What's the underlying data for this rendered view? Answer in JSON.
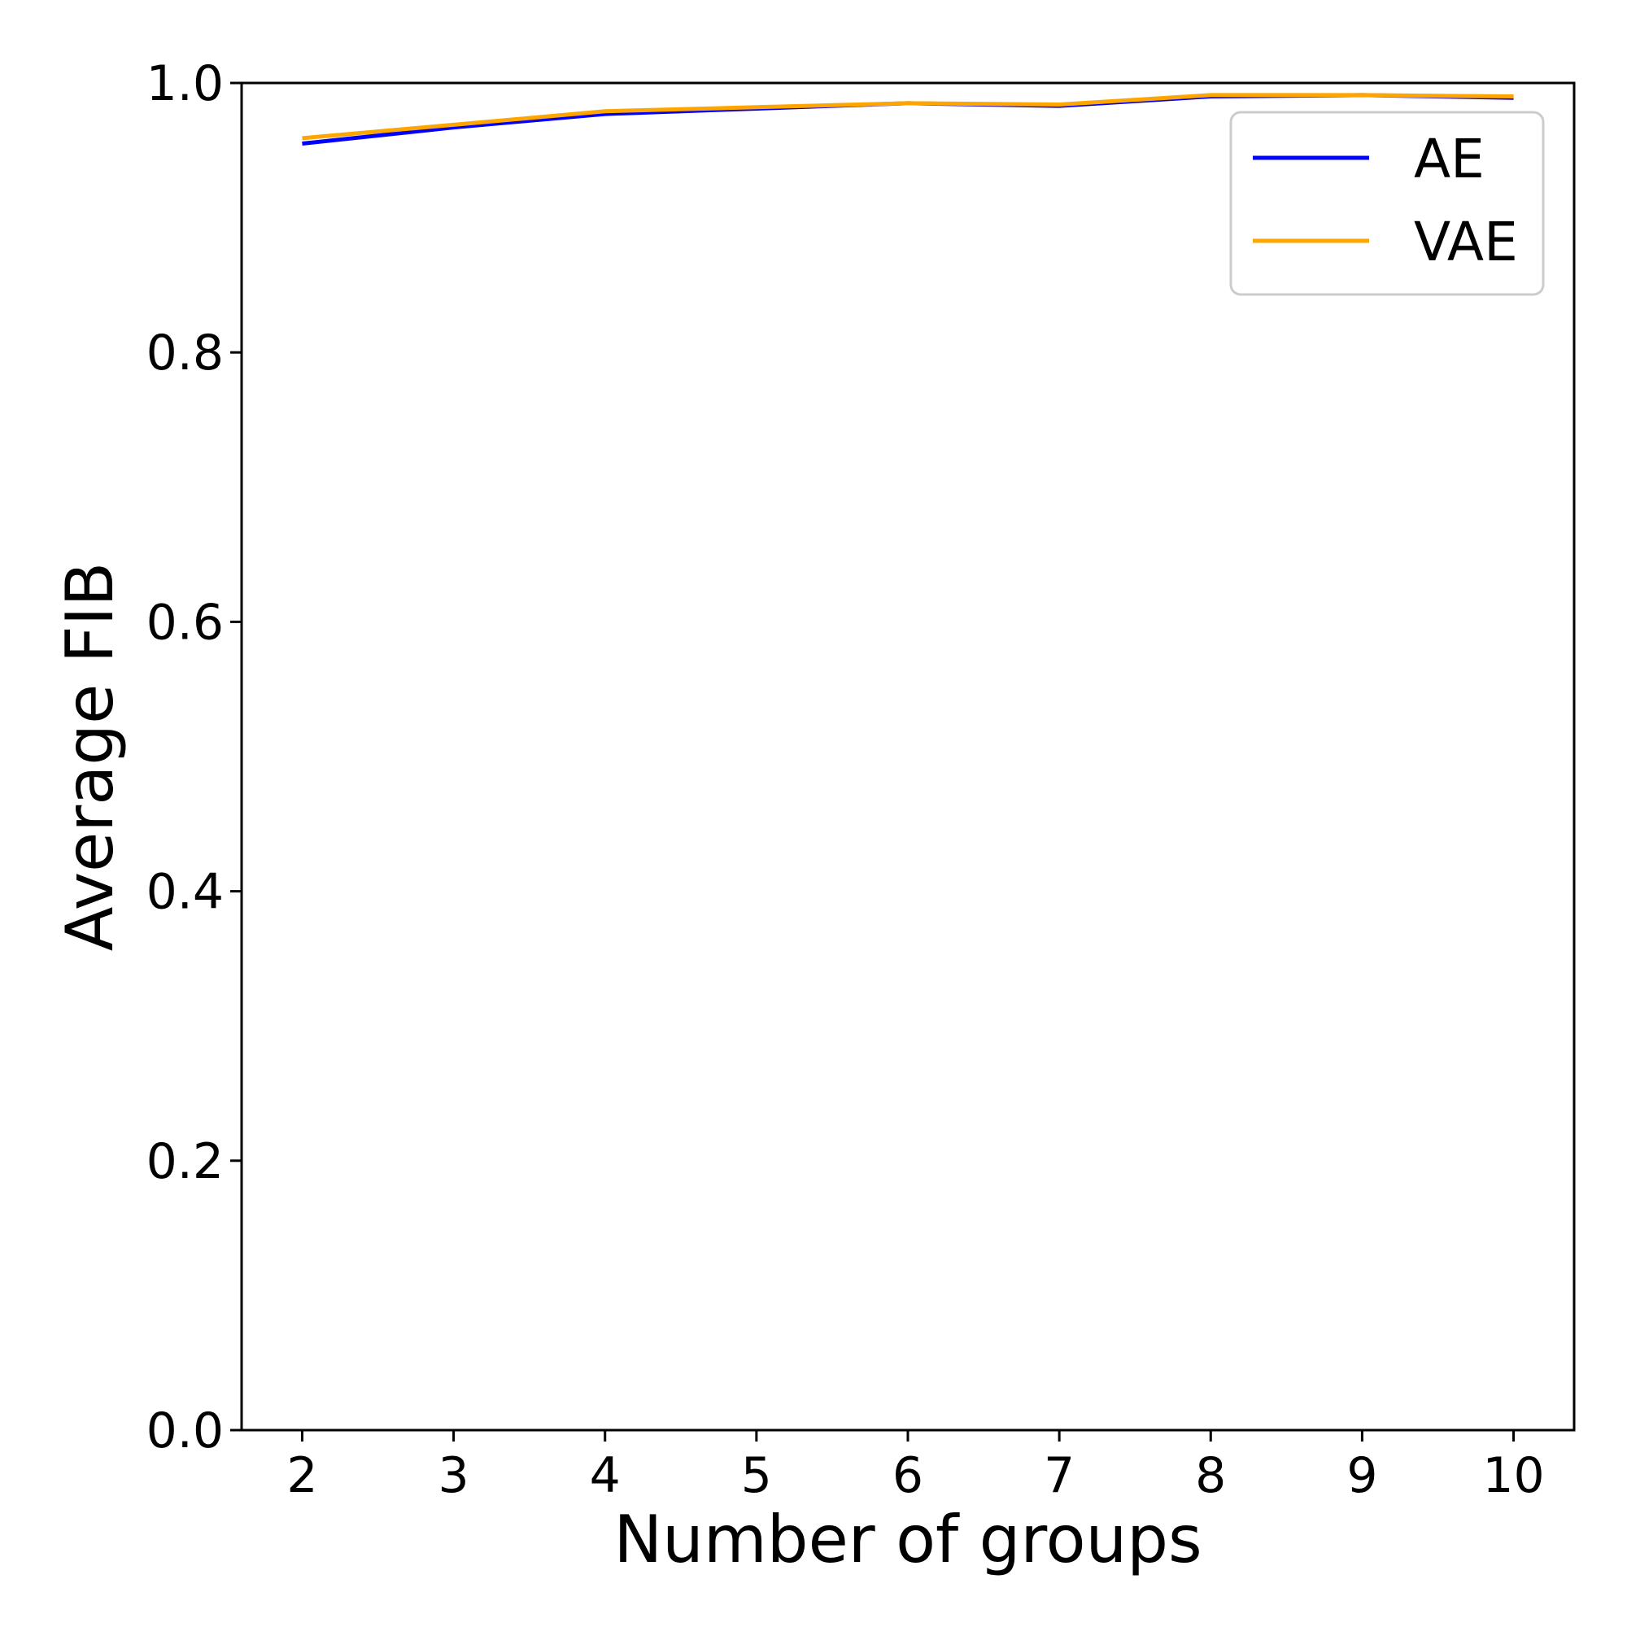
{
  "chart_data": {
    "type": "line",
    "title": "",
    "xlabel": "Number of groups",
    "ylabel": "Average FIB",
    "x": [
      2,
      3,
      4,
      5,
      6,
      7,
      8,
      9,
      10
    ],
    "xticks": [
      "2",
      "3",
      "4",
      "5",
      "6",
      "7",
      "8",
      "9",
      "10"
    ],
    "yticks": [
      "0.0",
      "0.2",
      "0.4",
      "0.6",
      "0.8",
      "1.0"
    ],
    "xlim": [
      1.6,
      10.4
    ],
    "ylim": [
      0.0,
      1.0
    ],
    "grid": false,
    "legend_position": "top-right",
    "series": [
      {
        "name": "AE",
        "color": "#0000ff",
        "values": [
          0.955,
          0.967,
          0.977,
          0.981,
          0.985,
          0.983,
          0.99,
          0.991,
          0.989
        ]
      },
      {
        "name": "VAE",
        "color": "#ffa500",
        "values": [
          0.959,
          0.969,
          0.979,
          0.982,
          0.985,
          0.984,
          0.991,
          0.991,
          0.99
        ]
      }
    ]
  }
}
